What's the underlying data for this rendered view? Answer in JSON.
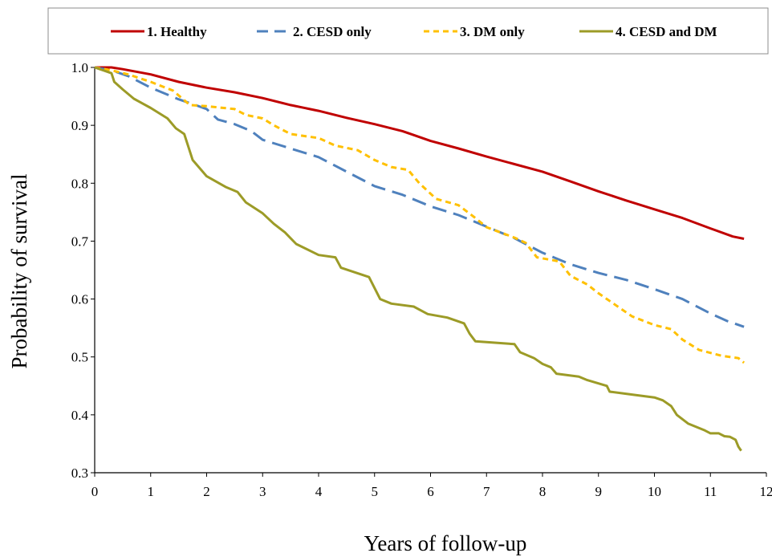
{
  "chart_data": {
    "type": "line",
    "title": "",
    "xlabel": "Years of follow-up",
    "ylabel": "Probability of survival",
    "xlim": [
      0,
      12
    ],
    "ylim": [
      0.3,
      1.0
    ],
    "x_ticks": [
      "0",
      "1",
      "2",
      "3",
      "4",
      "5",
      "6",
      "7",
      "8",
      "9",
      "10",
      "11",
      "12"
    ],
    "y_ticks": [
      "0.3",
      "0.4",
      "0.5",
      "0.6",
      "0.7",
      "0.8",
      "0.9",
      "1.0"
    ],
    "grid": false,
    "legend_position": "top",
    "series": [
      {
        "name": "1. Healthy",
        "color": "#C00000",
        "dash": "solid",
        "points": [
          [
            0,
            1.0
          ],
          [
            0.3,
            1.0
          ],
          [
            0.5,
            0.997
          ],
          [
            1.0,
            0.988
          ],
          [
            1.5,
            0.975
          ],
          [
            2.0,
            0.965
          ],
          [
            2.5,
            0.957
          ],
          [
            3.0,
            0.947
          ],
          [
            3.5,
            0.935
          ],
          [
            4.0,
            0.925
          ],
          [
            4.5,
            0.913
          ],
          [
            5.0,
            0.902
          ],
          [
            5.5,
            0.89
          ],
          [
            6.0,
            0.873
          ],
          [
            6.5,
            0.86
          ],
          [
            7.0,
            0.846
          ],
          [
            7.5,
            0.833
          ],
          [
            8.0,
            0.82
          ],
          [
            8.5,
            0.803
          ],
          [
            9.0,
            0.786
          ],
          [
            9.5,
            0.77
          ],
          [
            10.0,
            0.755
          ],
          [
            10.5,
            0.74
          ],
          [
            11.0,
            0.722
          ],
          [
            11.4,
            0.708
          ],
          [
            11.6,
            0.704
          ]
        ]
      },
      {
        "name": "2. CESD only",
        "color": "#4F81BD",
        "dash": "long",
        "points": [
          [
            0,
            1.0
          ],
          [
            0.3,
            0.995
          ],
          [
            0.6,
            0.985
          ],
          [
            1.0,
            0.965
          ],
          [
            1.5,
            0.945
          ],
          [
            1.8,
            0.935
          ],
          [
            2.0,
            0.928
          ],
          [
            2.2,
            0.91
          ],
          [
            2.5,
            0.902
          ],
          [
            2.8,
            0.89
          ],
          [
            3.0,
            0.875
          ],
          [
            3.5,
            0.86
          ],
          [
            4.0,
            0.845
          ],
          [
            4.5,
            0.82
          ],
          [
            5.0,
            0.795
          ],
          [
            5.5,
            0.78
          ],
          [
            6.0,
            0.76
          ],
          [
            6.5,
            0.745
          ],
          [
            7.0,
            0.725
          ],
          [
            7.5,
            0.705
          ],
          [
            8.0,
            0.68
          ],
          [
            8.5,
            0.66
          ],
          [
            9.0,
            0.645
          ],
          [
            9.5,
            0.633
          ],
          [
            10.0,
            0.617
          ],
          [
            10.5,
            0.6
          ],
          [
            11.0,
            0.575
          ],
          [
            11.3,
            0.562
          ],
          [
            11.6,
            0.552
          ]
        ]
      },
      {
        "name": "3. DM only",
        "color": "#FFC000",
        "dash": "short",
        "points": [
          [
            0,
            1.0
          ],
          [
            0.3,
            0.995
          ],
          [
            0.6,
            0.988
          ],
          [
            1.0,
            0.975
          ],
          [
            1.4,
            0.96
          ],
          [
            1.7,
            0.935
          ],
          [
            2.0,
            0.933
          ],
          [
            2.5,
            0.928
          ],
          [
            2.7,
            0.918
          ],
          [
            3.0,
            0.912
          ],
          [
            3.2,
            0.9
          ],
          [
            3.5,
            0.885
          ],
          [
            4.0,
            0.878
          ],
          [
            4.3,
            0.865
          ],
          [
            4.7,
            0.857
          ],
          [
            5.0,
            0.84
          ],
          [
            5.3,
            0.828
          ],
          [
            5.6,
            0.823
          ],
          [
            5.8,
            0.8
          ],
          [
            6.1,
            0.773
          ],
          [
            6.5,
            0.762
          ],
          [
            6.8,
            0.74
          ],
          [
            7.0,
            0.724
          ],
          [
            7.5,
            0.706
          ],
          [
            7.7,
            0.697
          ],
          [
            7.9,
            0.672
          ],
          [
            8.3,
            0.665
          ],
          [
            8.5,
            0.64
          ],
          [
            8.8,
            0.625
          ],
          [
            9.0,
            0.61
          ],
          [
            9.3,
            0.59
          ],
          [
            9.6,
            0.57
          ],
          [
            10.0,
            0.555
          ],
          [
            10.3,
            0.548
          ],
          [
            10.5,
            0.53
          ],
          [
            10.8,
            0.512
          ],
          [
            11.2,
            0.502
          ],
          [
            11.5,
            0.498
          ],
          [
            11.6,
            0.49
          ]
        ]
      },
      {
        "name": "4. CESD and DM",
        "color": "#9C9B27",
        "dash": "solid",
        "points": [
          [
            0,
            1.0
          ],
          [
            0.3,
            0.99
          ],
          [
            0.35,
            0.975
          ],
          [
            0.5,
            0.962
          ],
          [
            0.7,
            0.946
          ],
          [
            1.0,
            0.93
          ],
          [
            1.3,
            0.912
          ],
          [
            1.45,
            0.895
          ],
          [
            1.6,
            0.885
          ],
          [
            1.75,
            0.84
          ],
          [
            2.0,
            0.812
          ],
          [
            2.35,
            0.793
          ],
          [
            2.55,
            0.785
          ],
          [
            2.7,
            0.767
          ],
          [
            3.0,
            0.748
          ],
          [
            3.2,
            0.73
          ],
          [
            3.4,
            0.715
          ],
          [
            3.5,
            0.705
          ],
          [
            3.6,
            0.695
          ],
          [
            4.0,
            0.676
          ],
          [
            4.3,
            0.672
          ],
          [
            4.4,
            0.654
          ],
          [
            4.9,
            0.638
          ],
          [
            5.1,
            0.6
          ],
          [
            5.3,
            0.592
          ],
          [
            5.7,
            0.587
          ],
          [
            5.95,
            0.574
          ],
          [
            6.3,
            0.568
          ],
          [
            6.6,
            0.558
          ],
          [
            6.7,
            0.54
          ],
          [
            6.8,
            0.527
          ],
          [
            7.5,
            0.522
          ],
          [
            7.6,
            0.508
          ],
          [
            7.85,
            0.498
          ],
          [
            8.0,
            0.488
          ],
          [
            8.15,
            0.482
          ],
          [
            8.25,
            0.471
          ],
          [
            8.65,
            0.466
          ],
          [
            8.8,
            0.46
          ],
          [
            9.15,
            0.45
          ],
          [
            9.2,
            0.44
          ],
          [
            9.6,
            0.435
          ],
          [
            10.0,
            0.43
          ],
          [
            10.15,
            0.425
          ],
          [
            10.3,
            0.415
          ],
          [
            10.4,
            0.4
          ],
          [
            10.6,
            0.385
          ],
          [
            10.9,
            0.373
          ],
          [
            11.0,
            0.368
          ],
          [
            11.15,
            0.368
          ],
          [
            11.25,
            0.363
          ],
          [
            11.35,
            0.362
          ],
          [
            11.45,
            0.357
          ],
          [
            11.5,
            0.345
          ],
          [
            11.55,
            0.338
          ]
        ]
      }
    ]
  }
}
